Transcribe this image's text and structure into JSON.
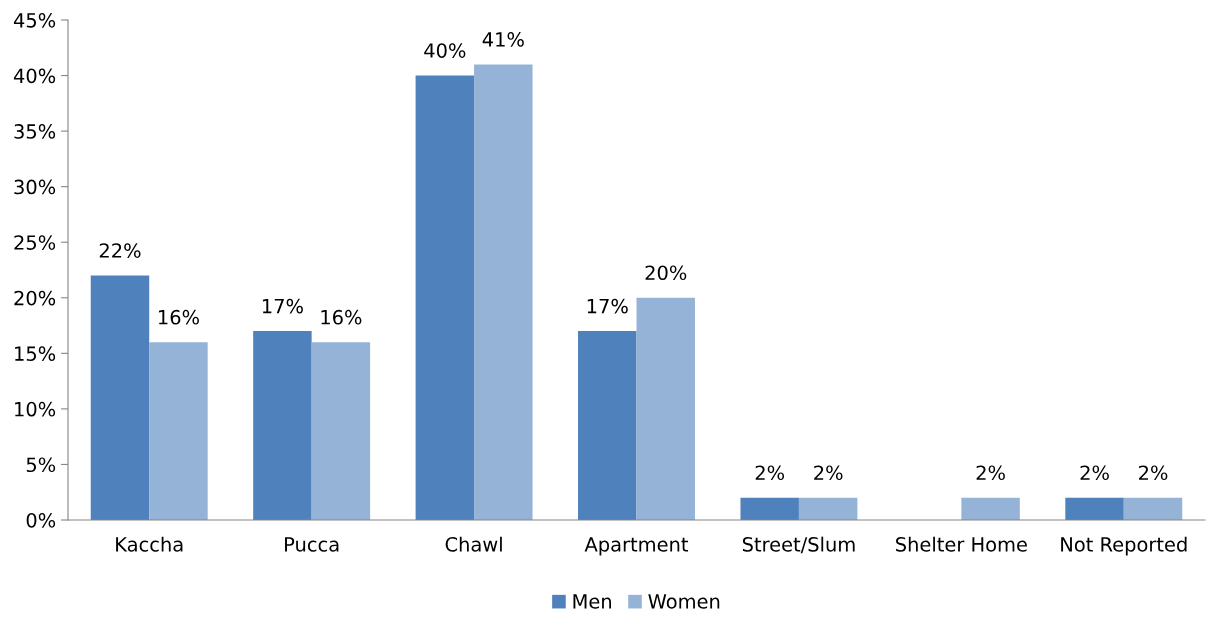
{
  "chart_data": {
    "type": "bar",
    "categories": [
      "Kaccha",
      "Pucca",
      "Chawl",
      "Apartment",
      "Street/Slum",
      "Shelter Home",
      "Not Reported"
    ],
    "series": [
      {
        "name": "Men",
        "color": "#4f81bd",
        "values": [
          22,
          17,
          40,
          17,
          2,
          null,
          2
        ],
        "value_labels": [
          "22%",
          "17%",
          "40%",
          "17%",
          "2%",
          null,
          "2%"
        ]
      },
      {
        "name": "Women",
        "color": "#95b3d7",
        "values": [
          16,
          16,
          41,
          20,
          2,
          2,
          2
        ],
        "value_labels": [
          "16%",
          "16%",
          "41%",
          "20%",
          "2%",
          "2%",
          "2%"
        ]
      }
    ],
    "ylim": [
      0,
      45
    ],
    "yticks": [
      {
        "value": 0,
        "label": "0%"
      },
      {
        "value": 5,
        "label": "5%"
      },
      {
        "value": 10,
        "label": "10%"
      },
      {
        "value": 15,
        "label": "15%"
      },
      {
        "value": 20,
        "label": "20%"
      },
      {
        "value": 25,
        "label": "25%"
      },
      {
        "value": 30,
        "label": "30%"
      },
      {
        "value": 35,
        "label": "35%"
      },
      {
        "value": 40,
        "label": "40%"
      },
      {
        "value": 45,
        "label": "45%"
      }
    ],
    "grid": false,
    "legend": "bottom"
  }
}
